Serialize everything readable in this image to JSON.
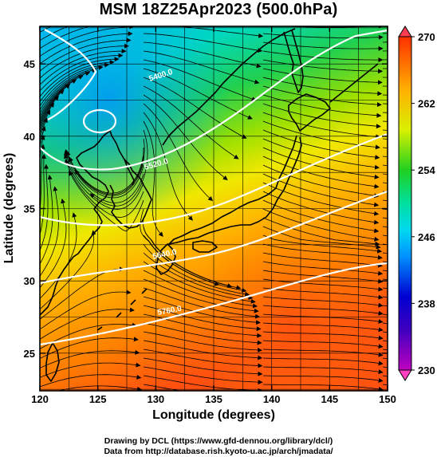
{
  "title": "MSM 18Z25Apr2023 (500.0hPa)",
  "x_axis": {
    "label": "Longitude (degrees)",
    "ticks": [
      "120",
      "125",
      "130",
      "135",
      "140",
      "145",
      "150"
    ],
    "range": [
      120,
      150
    ]
  },
  "y_axis": {
    "label": "Latitude  (degrees)",
    "ticks": [
      "25",
      "30",
      "35",
      "40",
      "45"
    ],
    "range": [
      22.4,
      47.6
    ]
  },
  "colorbar": {
    "ticks": [
      "230",
      "238",
      "246",
      "254",
      "262",
      "270"
    ],
    "range": [
      230,
      270
    ],
    "colors": [
      "#c000c0",
      "#0000d0",
      "#00b4ff",
      "#00e0a0",
      "#20d020",
      "#e0f000",
      "#ff9800",
      "#ff4000"
    ]
  },
  "contours": [
    {
      "label": "5400.0",
      "lat_at_120": 40.5
    },
    {
      "label": "5520.0",
      "lat_at_120": 35.2
    },
    {
      "label": "5640.0",
      "lat_at_120": 30.0
    },
    {
      "label": "5760.0",
      "lat_at_120": 24.3
    }
  ],
  "credits": {
    "line1": "Drawing by DCL (https://www.gfd-dennou.org/library/dcl/)",
    "line2": "Data from http://database.rish.kyoto-u.ac.jp/arch/jmadata/"
  }
}
